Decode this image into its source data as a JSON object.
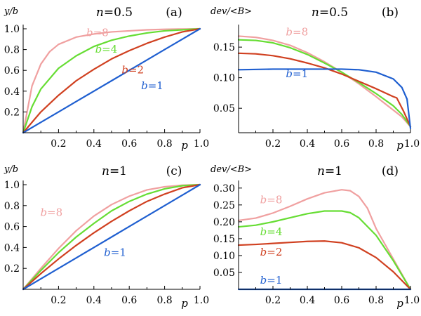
{
  "chart_data": [
    {
      "type": "line",
      "panel_label": "(a)",
      "parameter_label": "n=0.5",
      "ylabel": "y/b",
      "xlabel": "p",
      "xlim": [
        0,
        1
      ],
      "ylim": [
        0,
        1
      ],
      "x_ticks": [
        "0.2",
        "0.4",
        "0.6",
        "0.8",
        "1.0"
      ],
      "y_ticks": [
        "0.2",
        "0.4",
        "0.6",
        "0.8",
        "1.0"
      ],
      "grid": false,
      "series": [
        {
          "name": "b=8",
          "color": "#f0a0a0",
          "points": [
            [
              0,
              0
            ],
            [
              0.05,
              0.45
            ],
            [
              0.1,
              0.66
            ],
            [
              0.15,
              0.78
            ],
            [
              0.2,
              0.85
            ],
            [
              0.3,
              0.92
            ],
            [
              0.4,
              0.95
            ],
            [
              0.5,
              0.97
            ],
            [
              0.6,
              0.98
            ],
            [
              0.7,
              0.99
            ],
            [
              0.8,
              0.995
            ],
            [
              0.9,
              0.998
            ],
            [
              1.0,
              1.0
            ]
          ]
        },
        {
          "name": "b=4",
          "color": "#66dd33",
          "points": [
            [
              0,
              0
            ],
            [
              0.05,
              0.25
            ],
            [
              0.1,
              0.42
            ],
            [
              0.2,
              0.62
            ],
            [
              0.3,
              0.74
            ],
            [
              0.4,
              0.83
            ],
            [
              0.5,
              0.89
            ],
            [
              0.6,
              0.93
            ],
            [
              0.7,
              0.96
            ],
            [
              0.8,
              0.98
            ],
            [
              0.9,
              0.99
            ],
            [
              1.0,
              1.0
            ]
          ]
        },
        {
          "name": "b=2",
          "color": "#d04020",
          "points": [
            [
              0,
              0
            ],
            [
              0.1,
              0.2
            ],
            [
              0.2,
              0.36
            ],
            [
              0.3,
              0.5
            ],
            [
              0.4,
              0.61
            ],
            [
              0.5,
              0.71
            ],
            [
              0.6,
              0.79
            ],
            [
              0.7,
              0.86
            ],
            [
              0.8,
              0.92
            ],
            [
              0.9,
              0.97
            ],
            [
              1.0,
              1.0
            ]
          ]
        },
        {
          "name": "b=1",
          "color": "#1f5fd0",
          "points": [
            [
              0,
              0
            ],
            [
              0.1,
              0.1
            ],
            [
              0.2,
              0.2
            ],
            [
              0.3,
              0.3
            ],
            [
              0.4,
              0.4
            ],
            [
              0.5,
              0.5
            ],
            [
              0.6,
              0.6
            ],
            [
              0.7,
              0.7
            ],
            [
              0.8,
              0.8
            ],
            [
              0.9,
              0.9
            ],
            [
              1.0,
              1.0
            ]
          ]
        }
      ],
      "labels": [
        {
          "text": "b=8",
          "series": 0,
          "x": 0.42,
          "y": 0.93
        },
        {
          "text": "b=4",
          "series": 1,
          "x": 0.47,
          "y": 0.77
        },
        {
          "text": "b=2",
          "series": 2,
          "x": 0.62,
          "y": 0.57
        },
        {
          "text": "b=1",
          "series": 3,
          "x": 0.73,
          "y": 0.42
        }
      ]
    },
    {
      "type": "line",
      "panel_label": "(b)",
      "parameter_label": "n=0.5",
      "ylabel": "dev/<B>",
      "xlabel": "p",
      "xlim": [
        0,
        1
      ],
      "ylim": [
        0.01,
        0.18
      ],
      "x_ticks": [
        "0.2",
        "0.4",
        "0.6",
        "0.8",
        "1.0"
      ],
      "y_ticks": [
        "0.05",
        "0.10",
        "0.15"
      ],
      "grid": false,
      "series": [
        {
          "name": "b=8",
          "color": "#f0a0a0",
          "points": [
            [
              0,
              0.168
            ],
            [
              0.1,
              0.166
            ],
            [
              0.2,
              0.161
            ],
            [
              0.3,
              0.153
            ],
            [
              0.4,
              0.141
            ],
            [
              0.5,
              0.126
            ],
            [
              0.6,
              0.109
            ],
            [
              0.7,
              0.09
            ],
            [
              0.8,
              0.069
            ],
            [
              0.85,
              0.058
            ],
            [
              0.9,
              0.047
            ],
            [
              0.95,
              0.036
            ],
            [
              1.0,
              0.02
            ]
          ]
        },
        {
          "name": "b=4",
          "color": "#66dd33",
          "points": [
            [
              0,
              0.162
            ],
            [
              0.1,
              0.161
            ],
            [
              0.2,
              0.157
            ],
            [
              0.3,
              0.149
            ],
            [
              0.4,
              0.138
            ],
            [
              0.5,
              0.124
            ],
            [
              0.6,
              0.109
            ],
            [
              0.7,
              0.092
            ],
            [
              0.8,
              0.074
            ],
            [
              0.9,
              0.054
            ],
            [
              0.95,
              0.04
            ],
            [
              1.0,
              0.02
            ]
          ]
        },
        {
          "name": "b=2",
          "color": "#d04020",
          "points": [
            [
              0,
              0.14
            ],
            [
              0.1,
              0.139
            ],
            [
              0.2,
              0.136
            ],
            [
              0.3,
              0.131
            ],
            [
              0.4,
              0.124
            ],
            [
              0.5,
              0.116
            ],
            [
              0.6,
              0.106
            ],
            [
              0.7,
              0.094
            ],
            [
              0.8,
              0.082
            ],
            [
              0.9,
              0.069
            ],
            [
              0.92,
              0.067
            ],
            [
              0.96,
              0.045
            ],
            [
              1.0,
              0.02
            ]
          ]
        },
        {
          "name": "b=1",
          "color": "#1f5fd0",
          "points": [
            [
              0,
              0.113
            ],
            [
              0.2,
              0.114
            ],
            [
              0.4,
              0.114
            ],
            [
              0.6,
              0.114
            ],
            [
              0.7,
              0.113
            ],
            [
              0.8,
              0.109
            ],
            [
              0.9,
              0.098
            ],
            [
              0.95,
              0.084
            ],
            [
              0.98,
              0.065
            ],
            [
              1.0,
              0.017
            ]
          ]
        }
      ],
      "labels": [
        {
          "text": "b=8",
          "series": 0,
          "x": 0.34,
          "y": 0.169
        },
        {
          "text": "b=1",
          "series": 3,
          "x": 0.34,
          "y": 0.101
        }
      ]
    },
    {
      "type": "line",
      "panel_label": "(c)",
      "parameter_label": "n=1",
      "ylabel": "y/b",
      "xlabel": "p",
      "xlim": [
        0,
        1
      ],
      "ylim": [
        0,
        1
      ],
      "x_ticks": [
        "0.2",
        "0.4",
        "0.6",
        "0.8",
        "1.0"
      ],
      "y_ticks": [
        "0.2",
        "0.4",
        "0.6",
        "0.8",
        "1.0"
      ],
      "grid": false,
      "series": [
        {
          "name": "b=8",
          "color": "#f0a0a0",
          "points": [
            [
              0,
              0
            ],
            [
              0.1,
              0.2
            ],
            [
              0.2,
              0.39
            ],
            [
              0.3,
              0.56
            ],
            [
              0.4,
              0.7
            ],
            [
              0.5,
              0.81
            ],
            [
              0.6,
              0.89
            ],
            [
              0.7,
              0.95
            ],
            [
              0.8,
              0.98
            ],
            [
              0.9,
              0.995
            ],
            [
              1.0,
              1.0
            ]
          ]
        },
        {
          "name": "b=4",
          "color": "#66dd33",
          "points": [
            [
              0,
              0
            ],
            [
              0.1,
              0.18
            ],
            [
              0.2,
              0.35
            ],
            [
              0.3,
              0.5
            ],
            [
              0.4,
              0.63
            ],
            [
              0.5,
              0.75
            ],
            [
              0.6,
              0.84
            ],
            [
              0.7,
              0.91
            ],
            [
              0.8,
              0.96
            ],
            [
              0.9,
              0.99
            ],
            [
              1.0,
              1.0
            ]
          ]
        },
        {
          "name": "b=2",
          "color": "#d04020",
          "points": [
            [
              0,
              0
            ],
            [
              0.1,
              0.15
            ],
            [
              0.2,
              0.29
            ],
            [
              0.3,
              0.42
            ],
            [
              0.4,
              0.54
            ],
            [
              0.5,
              0.65
            ],
            [
              0.6,
              0.75
            ],
            [
              0.7,
              0.84
            ],
            [
              0.8,
              0.91
            ],
            [
              0.9,
              0.97
            ],
            [
              1.0,
              1.0
            ]
          ]
        },
        {
          "name": "b=1",
          "color": "#1f5fd0",
          "points": [
            [
              0,
              0
            ],
            [
              0.1,
              0.1
            ],
            [
              0.2,
              0.2
            ],
            [
              0.3,
              0.3
            ],
            [
              0.4,
              0.4
            ],
            [
              0.5,
              0.5
            ],
            [
              0.6,
              0.6
            ],
            [
              0.7,
              0.7
            ],
            [
              0.8,
              0.8
            ],
            [
              0.9,
              0.9
            ],
            [
              1.0,
              1.0
            ]
          ]
        }
      ],
      "labels": [
        {
          "text": "b=8",
          "series": 0,
          "x": 0.16,
          "y": 0.7
        },
        {
          "text": "b=1",
          "series": 3,
          "x": 0.52,
          "y": 0.32
        }
      ]
    },
    {
      "type": "line",
      "panel_label": "(d)",
      "parameter_label": "n=1",
      "ylabel": "dev/<B>",
      "xlabel": "p",
      "xlim": [
        0,
        1
      ],
      "ylim": [
        0,
        0.31
      ],
      "x_ticks": [
        "0.2",
        "0.4",
        "0.6",
        "0.8",
        "1.0"
      ],
      "y_ticks": [
        "0.05",
        "0.10",
        "0.15",
        "0.20",
        "0.25",
        "0.30"
      ],
      "grid": false,
      "series": [
        {
          "name": "b=8",
          "color": "#f0a0a0",
          "points": [
            [
              0,
              0.204
            ],
            [
              0.1,
              0.211
            ],
            [
              0.2,
              0.226
            ],
            [
              0.3,
              0.246
            ],
            [
              0.4,
              0.268
            ],
            [
              0.5,
              0.286
            ],
            [
              0.6,
              0.295
            ],
            [
              0.65,
              0.292
            ],
            [
              0.7,
              0.275
            ],
            [
              0.75,
              0.24
            ],
            [
              0.8,
              0.18
            ],
            [
              0.9,
              0.09
            ],
            [
              1.0,
              0.0
            ]
          ]
        },
        {
          "name": "b=4",
          "color": "#66dd33",
          "points": [
            [
              0,
              0.185
            ],
            [
              0.1,
              0.19
            ],
            [
              0.2,
              0.2
            ],
            [
              0.3,
              0.212
            ],
            [
              0.4,
              0.224
            ],
            [
              0.5,
              0.232
            ],
            [
              0.6,
              0.232
            ],
            [
              0.65,
              0.227
            ],
            [
              0.7,
              0.212
            ],
            [
              0.8,
              0.16
            ],
            [
              0.9,
              0.085
            ],
            [
              1.0,
              0.0
            ]
          ]
        },
        {
          "name": "b=2",
          "color": "#d04020",
          "points": [
            [
              0,
              0.131
            ],
            [
              0.1,
              0.133
            ],
            [
              0.2,
              0.136
            ],
            [
              0.3,
              0.139
            ],
            [
              0.4,
              0.142
            ],
            [
              0.5,
              0.143
            ],
            [
              0.6,
              0.138
            ],
            [
              0.7,
              0.123
            ],
            [
              0.8,
              0.094
            ],
            [
              0.9,
              0.052
            ],
            [
              1.0,
              0.0
            ]
          ]
        },
        {
          "name": "b=1",
          "color": "#1f5fd0",
          "points": [
            [
              0,
              0.0
            ],
            [
              0.25,
              0.0
            ],
            [
              0.5,
              0.0
            ],
            [
              0.75,
              0.0
            ],
            [
              1.0,
              0.0
            ]
          ]
        }
      ],
      "labels": [
        {
          "text": "b=8",
          "series": 0,
          "x": 0.19,
          "y": 0.255
        },
        {
          "text": "b=4",
          "series": 1,
          "x": 0.19,
          "y": 0.16
        },
        {
          "text": "b=2",
          "series": 2,
          "x": 0.19,
          "y": 0.1
        },
        {
          "text": "b=1",
          "series": 3,
          "x": 0.19,
          "y": 0.017
        }
      ]
    }
  ]
}
